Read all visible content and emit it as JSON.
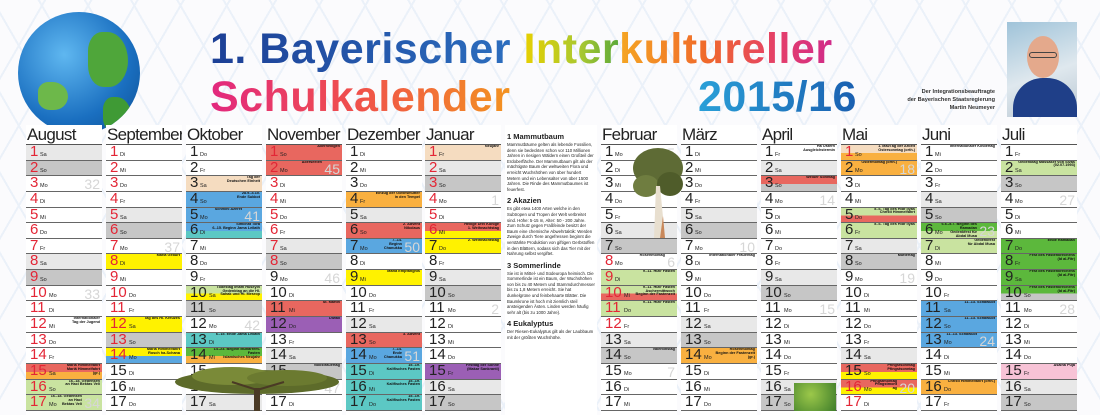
{
  "header": {
    "line1_a": "1. Bayerischer ",
    "line1_b": "Inter",
    "line1_c": "kultureller",
    "line2": "Schulkalender",
    "year": "2015/16",
    "caption": [
      "Der Integrationsbeauftragte",
      "der Bayerischen Staatsregierung",
      "Martin Neumeyer"
    ]
  },
  "colors": {
    "sa": "#e8e8e8",
    "so": "#c6c6c6",
    "red": "#e8675f",
    "orange": "#f9b040",
    "yellow": "#fff200",
    "blue": "#5aa7e0",
    "teal": "#5cc8c4",
    "lgreen": "#c9e3a0",
    "dgreen": "#5cb83c",
    "purple": "#9b5fb5",
    "peach": "#f5dcc0",
    "pink": "#f7c3d6",
    "white": "#ffffff",
    "redtext": "#e32636"
  },
  "months": [
    {
      "name": "August",
      "wd": [
        "Sa",
        "So",
        "Mo",
        "Di",
        "Mi",
        "Do",
        "Fr",
        "Sa",
        "So",
        "Mo",
        "Di",
        "Mi",
        "Do",
        "Fr",
        "Sa",
        "So",
        "Mo"
      ],
      "red": [
        1,
        2,
        3,
        4,
        5,
        6,
        7,
        8,
        9,
        10,
        11,
        12,
        13,
        14,
        15,
        16,
        17
      ],
      "weeks": {
        "3": "32",
        "10": "33",
        "17": "34"
      },
      "ev": {
        "12": {
          "t": "Internationaler",
          "t2": "Tag der Jugend"
        },
        "15": {
          "bg": "red",
          "bg2": "orange",
          "t": "Mariä Himmelfahrt",
          "t2": "Mariä Himmelfahrt (gr.)"
        },
        "16": {
          "bg": "lgreen",
          "t": "16.-18. Gedenken",
          "t2": "an Haci Bektas Veli"
        },
        "17": {
          "bg": "lgreen",
          "t": "16.-18. Gedenken",
          "t2": "an Haci Bektas Veli"
        }
      }
    },
    {
      "name": "September",
      "wd": [
        "Di",
        "Mi",
        "Do",
        "Fr",
        "Sa",
        "So",
        "Mo",
        "Di",
        "Mi",
        "Do",
        "Fr",
        "Sa",
        "So",
        "Mo",
        "Di",
        "Mi",
        "Do"
      ],
      "red": [
        1,
        2,
        3,
        4,
        5,
        6,
        7,
        8,
        9,
        10,
        11,
        12,
        13,
        14
      ],
      "weeks": {
        "7": "37"
      },
      "ev": {
        "8": {
          "bg": "yellow",
          "t": "Mariä Geburt"
        },
        "12": {
          "bg": "yellow",
          "t": "Tag des Hl. Kreuzes"
        },
        "14": {
          "bg": "yellow",
          "bg2": "blue",
          "t": "Mariä Himmelfahrt",
          "t2": "Rosch ha-Schana"
        }
      }
    },
    {
      "name": "Oktober",
      "wd": [
        "Do",
        "Fr",
        "Sa",
        "So",
        "Mo",
        "Di",
        "Mi",
        "Do",
        "Fr",
        "Sa",
        "So",
        "Mo",
        "Di",
        "Mi",
        "Do",
        "Fr",
        "Sa"
      ],
      "red": [],
      "weeks": {
        "5": "41",
        "12": "42"
      },
      "ev": {
        "3": {
          "bg": "peach",
          "t": "Tag der",
          "t2": "Deutschen Einheit"
        },
        "4": {
          "bg": "blue",
          "t": "28.9.-4.10.",
          "t2": "Ende Sukkot"
        },
        "5": {
          "bg": "blue",
          "t": "Schmini Azeret"
        },
        "6": {
          "bg": "blue",
          "bg2": "teal",
          "t": "Simchat Tora",
          "t2": "6.-15. Beginn Jama Leilath"
        },
        "10": {
          "bg": "lgreen",
          "bg2": "yellow",
          "t": "Todestag Imam Hüseyin",
          "t2": "Gedenktag an die Hl. Sahak und Hl. Mesrop"
        },
        "13": {
          "bg": "teal",
          "t": "6.-15. Ende Jama Leilath"
        },
        "14": {
          "bg": "dgreen",
          "bg2": "orange",
          "t": "14.-23. Beginn Muharrem-Fasten",
          "t2": "Islamisches Neujahr"
        }
      }
    },
    {
      "name": "November",
      "wd": [
        "So",
        "Mo",
        "Di",
        "Mi",
        "Do",
        "Fr",
        "Sa",
        "So",
        "Mo",
        "Di",
        "Mi",
        "Do",
        "Fr",
        "Sa",
        "So",
        "Mo",
        "Di"
      ],
      "red": [
        1,
        2,
        3,
        4,
        5,
        6,
        7,
        8
      ],
      "weeks": {
        "2": "45",
        "9": "46",
        "16": "47"
      },
      "ev": {
        "1": {
          "bg": "red",
          "t": "Allerheiligen"
        },
        "2": {
          "bg": "red",
          "t": "Allerseelen"
        },
        "11": {
          "bg": "red",
          "t": "St. Martin"
        },
        "12": {
          "bg": "purple",
          "t": "Diwali"
        },
        "15": {
          "bg": "so",
          "t": "Volkstrauertag"
        }
      }
    },
    {
      "name": "Dezember",
      "wd": [
        "Di",
        "Mi",
        "Do",
        "Fr",
        "Sa",
        "So",
        "Mo",
        "Di",
        "Mi",
        "Do",
        "Fr",
        "Sa",
        "So",
        "Mo",
        "Di",
        "Mi",
        "Do"
      ],
      "red": [],
      "weeks": {
        "7": "50",
        "14": "51"
      },
      "ev": {
        "4": {
          "bg": "orange",
          "t": "Einzug der Gottesmutter",
          "t2": "in den Tempel"
        },
        "6": {
          "bg": "red",
          "t": "2. Advent",
          "t2": "Nikolaus"
        },
        "7": {
          "bg": "blue",
          "t": "7.-14.",
          "t2": "Beginn Chanukka"
        },
        "9": {
          "bg": "yellow",
          "t": "Mariä Empfängnis"
        },
        "13": {
          "bg": "red",
          "t": "3. Advent"
        },
        "14": {
          "bg": "blue",
          "t": "7.-14.",
          "t2": "Ende Chanukka"
        },
        "15": {
          "bg": "teal",
          "t": "15.-19.",
          "t2": "Kalifisches Fasten"
        },
        "16": {
          "bg": "teal",
          "t": "15.-19.",
          "t2": "Kalifisches Fasten"
        },
        "17": {
          "bg": "teal",
          "t": "15.-19.",
          "t2": "Kalifisches Fasten"
        }
      }
    },
    {
      "name": "Januar",
      "wd": [
        "Fr",
        "Sa",
        "So",
        "Mo",
        "Di",
        "Mi",
        "Do",
        "Fr",
        "Sa",
        "So",
        "Mo",
        "Di",
        "Mi",
        "Do",
        "Fr",
        "Sa",
        "So"
      ],
      "red": [
        1,
        2,
        3,
        4,
        5,
        6
      ],
      "weeks": {
        "4": "1",
        "11": "2"
      },
      "ev": {
        "1": {
          "bg": "peach",
          "t": "Neujahr"
        },
        "6": {
          "bg": "red",
          "bg2": "yellow",
          "t": "Heilige Drei Könige",
          "t2": "1. Weihnachtstag"
        },
        "7": {
          "bg": "yellow",
          "t": "2. Weihnachtstag"
        },
        "15": {
          "bg": "purple",
          "t": "Festtag der Sonne",
          "t2": "(Makar Sankranti)"
        }
      }
    },
    {
      "name": "Februar",
      "wd": [
        "Mo",
        "Di",
        "Mi",
        "Do",
        "Fr",
        "Sa",
        "So",
        "Mo",
        "Di",
        "Mi",
        "Do",
        "Fr",
        "Sa",
        "So",
        "Mo",
        "Di",
        "Mi"
      ],
      "red": [
        8,
        9,
        10,
        11,
        12
      ],
      "weeks": {
        "1": "5",
        "8": "6",
        "15": "7"
      },
      "ev": {
        "8": {
          "t": "Rosenmontag"
        },
        "9": {
          "bg": "lgreen",
          "t": "9.-11. Hizir Fasten"
        },
        "10": {
          "bg": "lgreen",
          "bg2": "red",
          "t": "9.-11. Hizir Fasten",
          "t2": "Aschermittwoch Beginn der Fastenzeit"
        },
        "11": {
          "bg": "lgreen",
          "t": "9.-11. Hizir Fasten"
        },
        "14": {
          "t": "Valentinstag"
        }
      }
    },
    {
      "name": "März",
      "wd": [
        "Di",
        "Mi",
        "Do",
        "Fr",
        "Sa",
        "So",
        "Mo",
        "Di",
        "Mi",
        "Do",
        "Fr",
        "Sa",
        "So",
        "Mo",
        "Di",
        "Mi",
        "Do"
      ],
      "red": [],
      "weeks": {
        "7": "10"
      },
      "ev": {
        "8": {
          "t": "Internationaler Frauentag"
        },
        "14": {
          "bg": "orange",
          "t": "Rosenmontag",
          "t2": "Beginn der Fastenzeit (gr.)"
        }
      }
    },
    {
      "name": "April",
      "wd": [
        "Fr",
        "Sa",
        "So",
        "Mo",
        "Di",
        "Mi",
        "Do",
        "Fr",
        "Sa",
        "So",
        "Mo",
        "Di",
        "Mi",
        "Do",
        "Fr",
        "Sa",
        "So"
      ],
      "red": [],
      "weeks": {
        "4": "14",
        "11": "15"
      },
      "ev": {
        "1": {
          "t": "Ha Ostern",
          "t2": "Ausgleichstermin"
        },
        "3": {
          "bg": "red",
          "bg2": "so",
          "t": "Weißer Sonntag"
        }
      }
    },
    {
      "name": "Mai",
      "wd": [
        "So",
        "Mo",
        "Di",
        "Mi",
        "Do",
        "Fr",
        "Sa",
        "So",
        "Mo",
        "Di",
        "Mi",
        "Do",
        "Fr",
        "Sa",
        "So",
        "Mo",
        "Di"
      ],
      "red": [
        1,
        16,
        17
      ],
      "weeks": {
        "2": "18",
        "9": "19",
        "16": "20"
      },
      "ev": {
        "1": {
          "bg": "peach",
          "bg2": "orange",
          "t": "1. Mai/Tag der Arbeit",
          "t2": "Ostersonntag (orth.)"
        },
        "2": {
          "bg": "orange",
          "t": "Ostermontag (orth.)"
        },
        "5": {
          "bg": "lgreen",
          "bg2": "red",
          "t": "5.-6. Tag des Hidr Ilyas",
          "t2": "Christi Himmelfahrt"
        },
        "6": {
          "bg": "lgreen",
          "t": "5.-6. Tag des Hidr Ilyas"
        },
        "8": {
          "bg": "so",
          "t": "Muttertag"
        },
        "15": {
          "bg": "red",
          "bg2": "yellow",
          "t": "Pfingstsonntag",
          "t2": "Pfingstsonntag"
        },
        "16": {
          "bg": "red",
          "bg2": "yellow",
          "t": "Pfingstmontag",
          "t2": "Pfingstmontag"
        }
      }
    },
    {
      "name": "Juni",
      "wd": [
        "Mi",
        "Do",
        "Fr",
        "Sa",
        "So",
        "Mo",
        "Di",
        "Mi",
        "Do",
        "Fr",
        "Sa",
        "So",
        "Mo",
        "Di",
        "Mi",
        "Do",
        "Fr"
      ],
      "red": [],
      "weeks": {
        "6": "23",
        "13": "24"
      },
      "ev": {
        "1": {
          "t": "Internationaler Kindertag"
        },
        "6": {
          "bg": "dgreen",
          "bg2": "lgreen",
          "t": "6.6.-5.7. Beginn des Ramadan",
          "t2": "Gedenkfest für Abdal Musa"
        },
        "7": {
          "bg": "lgreen",
          "t": "Gedenkfest",
          "t2": "für Abdal Musa"
        },
        "11": {
          "bg": "blue",
          "t": "11.-13. Schawuot"
        },
        "12": {
          "bg": "blue",
          "t": "11.-13. Schawuot"
        },
        "13": {
          "bg": "blue",
          "t": "11.-13. Schawuot"
        },
        "16": {
          "bg": "orange",
          "t": "Christi Himmelfahrt (orth.)"
        }
      }
    },
    {
      "name": "Juli",
      "wd": [
        "Fr",
        "Sa",
        "So",
        "Mo",
        "Di",
        "Mi",
        "Do",
        "Fr",
        "Sa",
        "So",
        "Mo",
        "Di",
        "Mi",
        "Do",
        "Fr",
        "Sa",
        "So"
      ],
      "red": [],
      "weeks": {
        "4": "27",
        "11": "28"
      },
      "ev": {
        "2": {
          "bg": "lgreen",
          "t": "Gedenktag Massaker von Sivas",
          "t2": "(02.07.1993)"
        },
        "7": {
          "bg": "dgreen",
          "t": "Ende Ramadan"
        },
        "8": {
          "bg": "dgreen",
          "t": "Fest des Fastenbrechens",
          "t2": "(Id al-Fitr)"
        },
        "9": {
          "bg": "dgreen",
          "t": "Fest des Fastenbrechens",
          "t2": "(Id al-Fitr)"
        },
        "10": {
          "bg": "dgreen",
          "bg2": "so",
          "t": "Fest des Fastenbrechens",
          "t2": "(Id al-Fitr)"
        },
        "15": {
          "bg": "pink",
          "t": "Asalha Puja"
        }
      }
    }
  ],
  "trees": [
    {
      "title": "1 Mammutbaum",
      "text": "Mammutbäume gelten als lebende Fossilien, denn sie bedeckten schon vor 110 Millionen Jahren in riesigen Wäldern einen Großteil der Erdoberfläche. Der Mammutbaum gilt als der mächtigste Baum der weltweiten Flora und erreicht Wuchshöhen von über hundert Metern und ein Lebensalter von über 1500 Jahren. Die Rinde des Mammutbaumes ist feuerfest."
    },
    {
      "title": "2 Akazien",
      "text": "Es gibt etwa 1400 Arten welche in den Subtropen und Tropen der Welt verbreitet sind. Höhe: 5-15 m, Alter: 50 - 200 Jahre. Zum Schutz gegen Fraßfeinde besitzt der Baum eine chemische Abwehrtaktik: Werden Zweige durch Tiere angefressen beginnt die verstärkte Produktion von giftigen Gerbstoffen in den Blättern, sodass sich das Tier mit der Nahrung selbst vergiftet."
    },
    {
      "title": "3 Sommerlinde",
      "text": "Sie ist in Mittel- und Südeuropa heimisch. Die Sommerlinde ist ein Baum, der Wuchshöhen von bis zu 40 Metern und Stammdurchmesser bis zu 1,8 Metern erreicht. Sie hat dunkelgrüne und feinbehaarte Blätter. Die Baumkrone ist hoch mit ziemlich steil ansteigenden Ästen. Linden werden häufig sehr alt (bis zu 1000 Jahre)."
    },
    {
      "title": "4 Eukalyptus",
      "text": "Der Riesen-Eukalyptus gilt als der Laubbaum mit der größten Wuchshöhe."
    }
  ]
}
